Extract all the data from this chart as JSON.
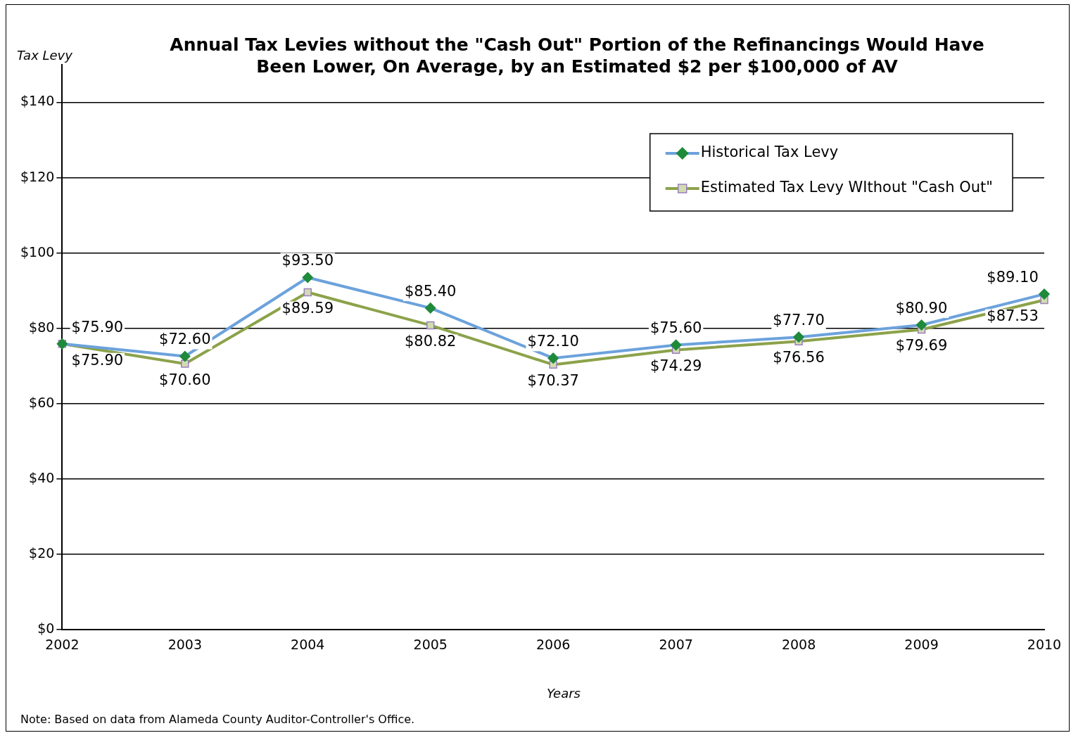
{
  "chart_data": {
    "type": "line",
    "title": "Annual Tax Levies without the \"Cash Out\" Portion of the Refinancings Would Have Been Lower, On Average, by an Estimated $2 per $100,000 of AV",
    "xlabel": "Years",
    "ylabel": "Tax Levy",
    "annotations": [
      "Note: Based on data from Alameda County Auditor-Controller's Office."
    ],
    "categories": [
      "2002",
      "2003",
      "2004",
      "2005",
      "2006",
      "2007",
      "2008",
      "2009",
      "2010"
    ],
    "series": [
      {
        "name": "Historical Tax Levy",
        "color": "#6ca2dc",
        "marker": "diamond",
        "values": [
          75.9,
          72.6,
          93.5,
          85.4,
          72.1,
          75.6,
          77.7,
          80.9,
          89.1
        ],
        "value_labels": [
          "$75.90",
          "$72.60",
          "$93.50",
          "$85.40",
          "$72.10",
          "$75.60",
          "$77.70",
          "$80.90",
          "$89.10"
        ]
      },
      {
        "name": "Estimated Tax Levy WIthout \"Cash Out\"",
        "color": "#8ca24a",
        "marker": "square",
        "values": [
          75.9,
          70.6,
          89.59,
          80.82,
          70.37,
          74.29,
          76.56,
          79.69,
          87.53
        ],
        "value_labels": [
          "$75.90",
          "$70.60",
          "$89.59",
          "$80.82",
          "$70.37",
          "$74.29",
          "$76.56",
          "$79.69",
          "$87.53"
        ]
      }
    ],
    "ylim": [
      0,
      150
    ],
    "yticks": [
      {
        "value": 0,
        "label": "$0"
      },
      {
        "value": 20,
        "label": "$20"
      },
      {
        "value": 40,
        "label": "$40"
      },
      {
        "value": 60,
        "label": "$60"
      },
      {
        "value": 80,
        "label": "$80"
      },
      {
        "value": 100,
        "label": "$100"
      },
      {
        "value": 120,
        "label": "$120"
      },
      {
        "value": 140,
        "label": "$140"
      }
    ],
    "grid": "y",
    "legend": "top right",
    "line_style": "solid"
  }
}
